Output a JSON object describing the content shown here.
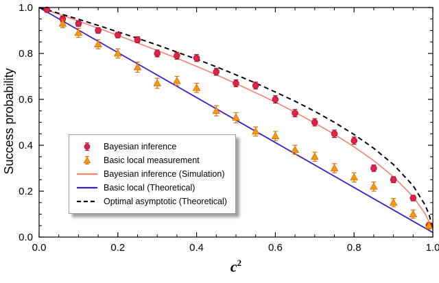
{
  "figure": {
    "background": "#ffffff"
  },
  "chart_data": {
    "type": "line",
    "title": "",
    "xlabel": {
      "base": "c",
      "exponent": "2"
    },
    "ylabel": "Success probability",
    "xlim": [
      0,
      1
    ],
    "ylim": [
      0,
      1
    ],
    "grid": false,
    "legend_position": "middle-left",
    "xticks": {
      "values": [
        0,
        0.2,
        0.4,
        0.6,
        0.8,
        1.0
      ],
      "labels": [
        "0.0",
        "0.2",
        "0.4",
        "0.6",
        "0.8",
        "1.0"
      ]
    },
    "yticks": {
      "values": [
        0,
        0.2,
        0.4,
        0.6,
        0.8,
        1.0
      ],
      "labels": [
        "0.0",
        "0.2",
        "0.4",
        "0.6",
        "0.8",
        "1.0"
      ]
    },
    "minor_tick_step": 0.05,
    "series": [
      {
        "name": "Bayesian inference",
        "kind": "scatter",
        "marker": "circle",
        "color": "#e22349",
        "edge_color": "#a8102e",
        "x": [
          0.02,
          0.06,
          0.1,
          0.15,
          0.2,
          0.25,
          0.3,
          0.35,
          0.4,
          0.45,
          0.5,
          0.55,
          0.6,
          0.65,
          0.7,
          0.75,
          0.8,
          0.85,
          0.9,
          0.95,
          0.99
        ],
        "y": [
          0.99,
          0.95,
          0.93,
          0.9,
          0.88,
          0.86,
          0.8,
          0.79,
          0.78,
          0.72,
          0.67,
          0.66,
          0.6,
          0.54,
          0.5,
          0.45,
          0.42,
          0.3,
          0.25,
          0.17,
          0.05
        ],
        "yerr": [
          0.01,
          0.012,
          0.012,
          0.012,
          0.012,
          0.013,
          0.015,
          0.015,
          0.015,
          0.015,
          0.015,
          0.015,
          0.016,
          0.016,
          0.016,
          0.016,
          0.016,
          0.014,
          0.013,
          0.012,
          0.01
        ]
      },
      {
        "name": "Basic local measurement",
        "kind": "scatter",
        "marker": "triangle",
        "color": "#ff9713",
        "edge_color": "#cf7400",
        "x": [
          0.06,
          0.1,
          0.15,
          0.2,
          0.25,
          0.3,
          0.35,
          0.4,
          0.45,
          0.5,
          0.55,
          0.6,
          0.65,
          0.7,
          0.75,
          0.8,
          0.85,
          0.9,
          0.95,
          0.99
        ],
        "y": [
          0.93,
          0.89,
          0.84,
          0.8,
          0.74,
          0.67,
          0.68,
          0.65,
          0.55,
          0.52,
          0.46,
          0.44,
          0.38,
          0.35,
          0.3,
          0.26,
          0.22,
          0.15,
          0.1,
          0.05
        ],
        "yerr": [
          0.018,
          0.02,
          0.02,
          0.02,
          0.022,
          0.022,
          0.02,
          0.02,
          0.022,
          0.022,
          0.02,
          0.02,
          0.02,
          0.02,
          0.02,
          0.02,
          0.02,
          0.018,
          0.018,
          0.015
        ]
      },
      {
        "name": "Bayesian inference (Simulation)",
        "kind": "line",
        "style": "solid",
        "color": "#f97f6d",
        "width": 1.6,
        "x": [
          0,
          0.05,
          0.1,
          0.15,
          0.2,
          0.25,
          0.3,
          0.35,
          0.4,
          0.45,
          0.5,
          0.55,
          0.6,
          0.65,
          0.7,
          0.75,
          0.8,
          0.85,
          0.9,
          0.95,
          0.98,
          0.99,
          1.0
        ],
        "y": [
          1.0,
          0.971,
          0.941,
          0.91,
          0.879,
          0.846,
          0.813,
          0.779,
          0.744,
          0.707,
          0.669,
          0.629,
          0.588,
          0.544,
          0.497,
          0.448,
          0.393,
          0.333,
          0.263,
          0.176,
          0.103,
          0.069,
          0.03
        ]
      },
      {
        "name": "Basic local (Theoretical)",
        "kind": "line",
        "style": "solid",
        "color": "#3e1bd6",
        "width": 1.8,
        "x": [
          0,
          0.25,
          0.5,
          0.75,
          1.0
        ],
        "y": [
          1.0,
          0.755,
          0.51,
          0.265,
          0.02
        ]
      },
      {
        "name": "Optimal asymptotic (Theoretical)",
        "kind": "line",
        "style": "dashed",
        "color": "#000000",
        "width": 2.0,
        "x": [
          0,
          0.05,
          0.1,
          0.15,
          0.2,
          0.25,
          0.3,
          0.35,
          0.4,
          0.45,
          0.5,
          0.55,
          0.6,
          0.65,
          0.7,
          0.75,
          0.8,
          0.85,
          0.9,
          0.95,
          0.98,
          0.99,
          1.0
        ],
        "y": [
          1.0,
          0.975,
          0.949,
          0.922,
          0.894,
          0.866,
          0.837,
          0.806,
          0.775,
          0.742,
          0.707,
          0.671,
          0.632,
          0.592,
          0.548,
          0.5,
          0.447,
          0.387,
          0.316,
          0.224,
          0.141,
          0.1,
          0.04
        ]
      }
    ]
  }
}
